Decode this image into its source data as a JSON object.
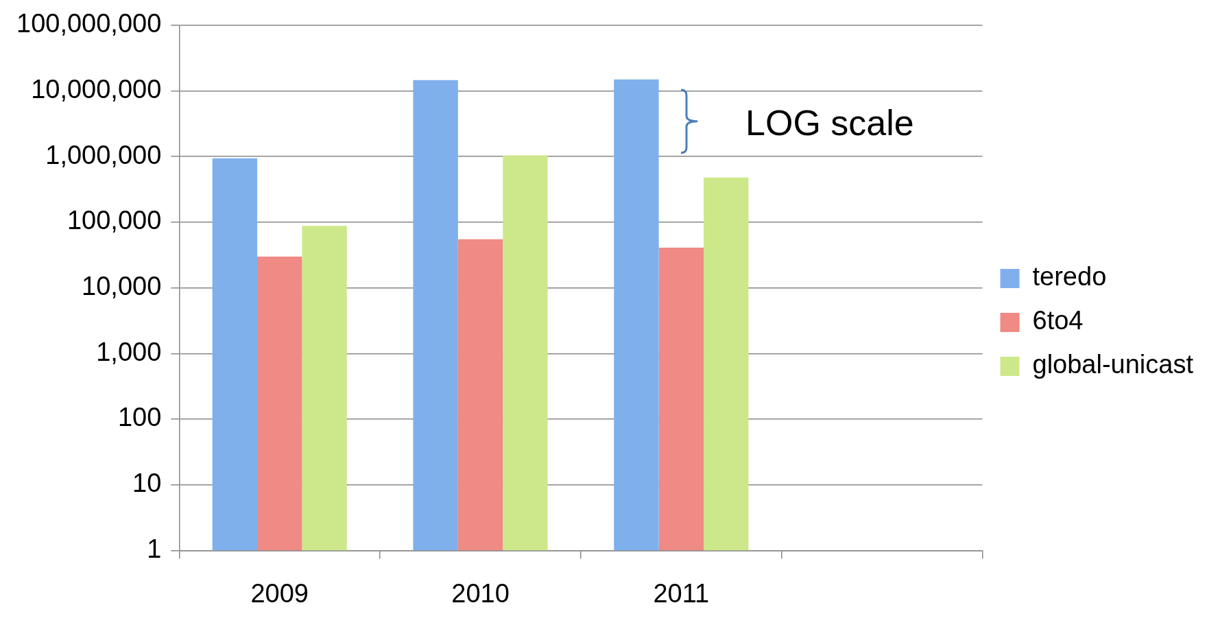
{
  "chart_data": {
    "type": "bar",
    "categories": [
      "2009",
      "2010",
      "2011",
      null
    ],
    "series": [
      {
        "name": "teredo",
        "color": "#7fb0ec",
        "values": [
          940000,
          14600000,
          15000000,
          null
        ]
      },
      {
        "name": "6to4",
        "color": "#ef8a84",
        "values": [
          30000,
          55000,
          41000,
          null
        ]
      },
      {
        "name": "global-unicast",
        "color": "#cde88a",
        "values": [
          88000,
          1040000,
          480000,
          null
        ]
      }
    ],
    "log": "y",
    "ylim": [
      1,
      100000000
    ],
    "yticks": [
      1,
      10,
      100,
      {
        "value": 1000,
        "label": "1,000"
      },
      {
        "value": 10000,
        "label": "10,000"
      },
      {
        "value": 100000,
        "label": "100,000"
      },
      {
        "value": 1000000,
        "label": "1,000,000"
      },
      {
        "value": 10000000,
        "label": "10,000,000"
      },
      {
        "value": 100000000,
        "label": "100,000,000"
      }
    ],
    "grid": "y",
    "legend": "right",
    "annotations": [
      "LOG scale"
    ]
  }
}
